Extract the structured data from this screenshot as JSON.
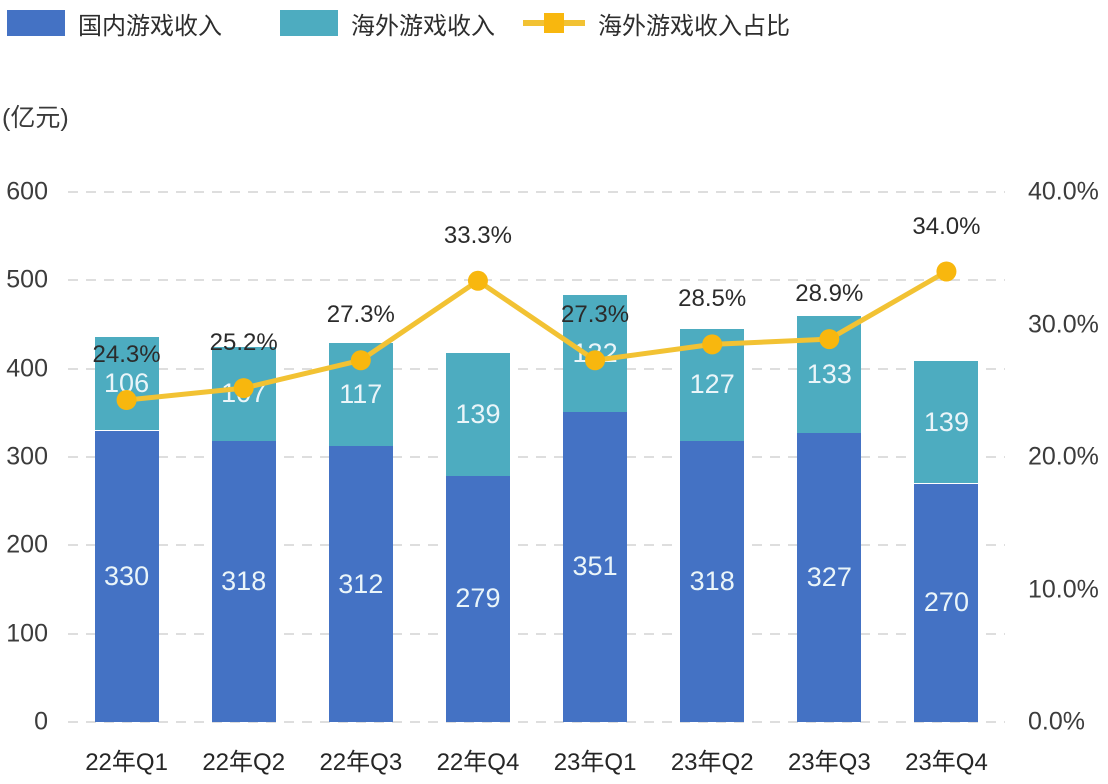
{
  "unit_label": "(亿元)",
  "legend": [
    {
      "label": "国内游戏收入",
      "color": "#4472c4",
      "type": "box"
    },
    {
      "label": "海外游戏收入",
      "color": "#4dacc0",
      "type": "box"
    },
    {
      "label": "海外游戏收入占比",
      "color": "#f2c233",
      "marker_color": "#f8b70e",
      "type": "line"
    }
  ],
  "chart_data": {
    "type": "bar",
    "subtype": "stacked-bar-with-line-combo",
    "title": "",
    "xlabel": "",
    "ylabel_left": "亿元",
    "ylabel_right": "%",
    "grid": "horizontal dashed",
    "legend_position": "top-left",
    "categories": [
      "22年Q1",
      "22年Q2",
      "22年Q3",
      "22年Q4",
      "23年Q1",
      "23年Q2",
      "23年Q3",
      "23年Q4"
    ],
    "series": [
      {
        "name": "国内游戏收入",
        "type": "bar",
        "stack": true,
        "axis": "left",
        "color": "#4472c4",
        "values": [
          330,
          318,
          312,
          279,
          351,
          318,
          327,
          270
        ]
      },
      {
        "name": "海外游戏收入",
        "type": "bar",
        "stack": true,
        "axis": "left",
        "color": "#4dacc0",
        "values": [
          106,
          107,
          117,
          139,
          132,
          127,
          133,
          139
        ]
      },
      {
        "name": "海外游戏收入占比",
        "type": "line",
        "axis": "right",
        "color": "#f2c233",
        "marker_color": "#f8b70e",
        "values": [
          24.3,
          25.2,
          27.3,
          33.3,
          27.3,
          28.5,
          28.9,
          34.0
        ],
        "labels": [
          "24.3%",
          "25.2%",
          "27.3%",
          "33.3%",
          "27.3%",
          "28.5%",
          "28.9%",
          "34.0%"
        ]
      }
    ],
    "left_axis": {
      "min": 0,
      "max": 600,
      "ticks": [
        {
          "v": 600,
          "label": "600"
        },
        {
          "v": 500,
          "label": "500"
        },
        {
          "v": 400,
          "label": "400"
        },
        {
          "v": 300,
          "label": "300"
        },
        {
          "v": 200,
          "label": "200"
        },
        {
          "v": 100,
          "label": "100"
        },
        {
          "v": 0,
          "label": "0"
        }
      ]
    },
    "right_axis": {
      "min": 0,
      "max": 40,
      "ticks": [
        {
          "v": 40,
          "label": "40.0%"
        },
        {
          "v": 30,
          "label": "30.0%"
        },
        {
          "v": 20,
          "label": "20.0%"
        },
        {
          "v": 10,
          "label": "10.0%"
        },
        {
          "v": 0,
          "label": "0.0%"
        }
      ]
    }
  }
}
